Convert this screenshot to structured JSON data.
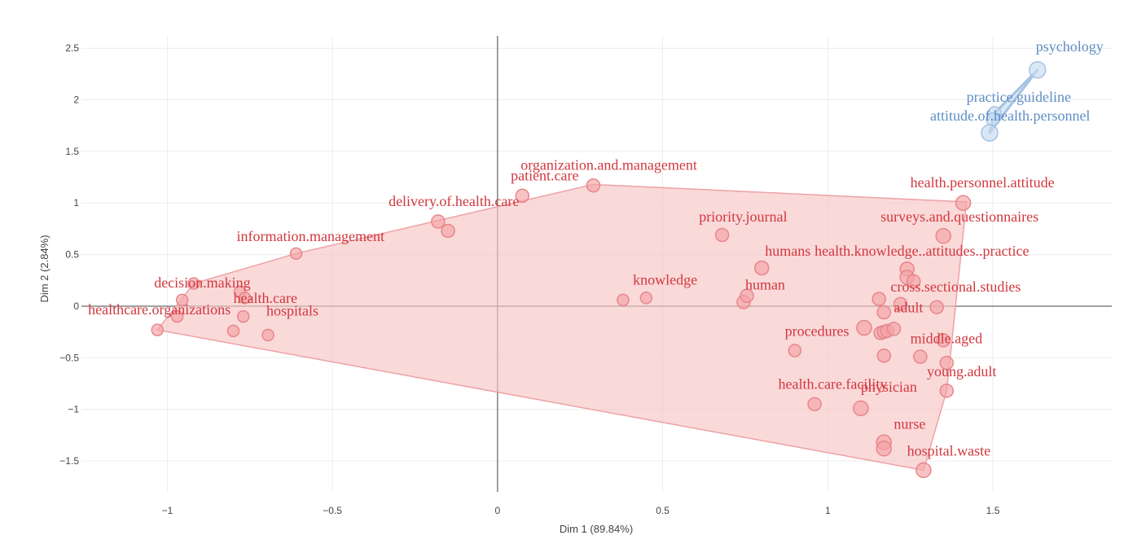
{
  "chart_data": {
    "type": "scatter",
    "xlabel": "Dim 1 (89.84%)",
    "ylabel": "Dim 2 (2.84%)",
    "xlim": [
      -1.26,
      1.86
    ],
    "ylim": [
      -1.8,
      2.62
    ],
    "grid": true,
    "x_ticks": [
      {
        "v": -1,
        "label": "−1"
      },
      {
        "v": -0.5,
        "label": "−0.5"
      },
      {
        "v": 0,
        "label": "0"
      },
      {
        "v": 0.5,
        "label": "0.5"
      },
      {
        "v": 1,
        "label": "1"
      },
      {
        "v": 1.5,
        "label": "1.5"
      }
    ],
    "y_ticks": [
      {
        "v": 2.5,
        "label": "2.5"
      },
      {
        "v": 2,
        "label": "2"
      },
      {
        "v": 1.5,
        "label": "1.5"
      },
      {
        "v": 1,
        "label": "1"
      },
      {
        "v": 0.5,
        "label": "0.5"
      },
      {
        "v": 0,
        "label": "0"
      },
      {
        "v": -0.5,
        "label": "−0.5"
      },
      {
        "v": -1,
        "label": "−1"
      },
      {
        "v": -1.5,
        "label": "−1.5"
      }
    ],
    "colors": {
      "red_fill": "#f4a3a6",
      "red_stroke": "#e8868a",
      "red_text": "#d1383e",
      "hull_fill": "#f7c4c5",
      "hull_stroke": "#eda2a5",
      "blue_fill": "#c7daf0",
      "blue_stroke": "#a4c2e4",
      "blue_text": "#5e8ec4"
    },
    "series": [
      {
        "cluster": "red",
        "points": [
          {
            "x": -1.03,
            "y": -0.23,
            "r": 7
          },
          {
            "x": -0.97,
            "y": -0.1,
            "r": 7
          },
          {
            "x": -0.955,
            "y": 0.06,
            "r": 7
          },
          {
            "x": -0.92,
            "y": 0.22,
            "r": 7
          },
          {
            "x": -0.78,
            "y": 0.14,
            "r": 7
          },
          {
            "x": -0.765,
            "y": 0.08,
            "r": 7
          },
          {
            "x": -0.77,
            "y": -0.1,
            "r": 7
          },
          {
            "x": -0.8,
            "y": -0.24,
            "r": 7
          },
          {
            "x": -0.695,
            "y": -0.28,
            "r": 7
          },
          {
            "x": -0.61,
            "y": 0.51,
            "r": 7
          },
          {
            "x": -0.18,
            "y": 0.82,
            "r": 8
          },
          {
            "x": -0.15,
            "y": 0.73,
            "r": 8
          },
          {
            "x": 0.075,
            "y": 1.07,
            "r": 8
          },
          {
            "x": 0.29,
            "y": 1.17,
            "r": 8
          },
          {
            "x": 0.38,
            "y": 0.06,
            "r": 7
          },
          {
            "x": 0.45,
            "y": 0.08,
            "r": 7
          },
          {
            "x": 0.68,
            "y": 0.69,
            "r": 8
          },
          {
            "x": 0.745,
            "y": 0.04,
            "r": 8
          },
          {
            "x": 0.755,
            "y": 0.1,
            "r": 8
          },
          {
            "x": 0.8,
            "y": 0.37,
            "r": 8.5
          },
          {
            "x": 0.9,
            "y": -0.43,
            "r": 7.5
          },
          {
            "x": 0.96,
            "y": -0.95,
            "r": 8
          },
          {
            "x": 1.1,
            "y": -0.99,
            "r": 9
          },
          {
            "x": 1.11,
            "y": -0.21,
            "r": 9
          },
          {
            "x": 1.16,
            "y": -0.26,
            "r": 8
          },
          {
            "x": 1.17,
            "y": -0.25,
            "r": 8
          },
          {
            "x": 1.18,
            "y": -0.24,
            "r": 8
          },
          {
            "x": 1.2,
            "y": -0.22,
            "r": 8
          },
          {
            "x": 1.17,
            "y": -0.06,
            "r": 8
          },
          {
            "x": 1.17,
            "y": -0.48,
            "r": 8
          },
          {
            "x": 1.155,
            "y": 0.07,
            "r": 8
          },
          {
            "x": 1.22,
            "y": 0.02,
            "r": 8
          },
          {
            "x": 1.24,
            "y": 0.36,
            "r": 8.5
          },
          {
            "x": 1.24,
            "y": 0.28,
            "r": 8.5
          },
          {
            "x": 1.26,
            "y": 0.24,
            "r": 8
          },
          {
            "x": 1.33,
            "y": -0.01,
            "r": 8
          },
          {
            "x": 1.35,
            "y": -0.33,
            "r": 8
          },
          {
            "x": 1.28,
            "y": -0.49,
            "r": 8
          },
          {
            "x": 1.36,
            "y": -0.55,
            "r": 8
          },
          {
            "x": 1.36,
            "y": -0.82,
            "r": 8
          },
          {
            "x": 1.17,
            "y": -1.32,
            "r": 9
          },
          {
            "x": 1.17,
            "y": -1.38,
            "r": 9
          },
          {
            "x": 1.29,
            "y": -1.59,
            "r": 9
          },
          {
            "x": 1.35,
            "y": 0.68,
            "r": 9
          },
          {
            "x": 1.41,
            "y": 1.0,
            "r": 9
          }
        ],
        "hull": [
          [
            -1.03,
            -0.23
          ],
          [
            -0.92,
            0.22
          ],
          [
            -0.61,
            0.51
          ],
          [
            0.29,
            1.18
          ],
          [
            1.42,
            1.01
          ],
          [
            1.36,
            -0.82
          ],
          [
            1.29,
            -1.59
          ]
        ],
        "labels": [
          {
            "text": "psychology",
            "x": 0,
            "y": 0,
            "hidden": true
          },
          {
            "text": "healthcare.organizations",
            "x": -1.24,
            "y": -0.08
          },
          {
            "text": "decision.making",
            "x": -1.04,
            "y": 0.18
          },
          {
            "text": "health.care",
            "x": -0.8,
            "y": 0.03
          },
          {
            "text": "hospitals",
            "x": -0.7,
            "y": -0.09
          },
          {
            "text": "information.management",
            "x": -0.79,
            "y": 0.63
          },
          {
            "text": "delivery.of.health.care",
            "x": -0.33,
            "y": 0.97
          },
          {
            "text": "patient.care",
            "x": 0.04,
            "y": 1.22
          },
          {
            "text": "organization.and.management",
            "x": 0.07,
            "y": 1.32
          },
          {
            "text": "knowledge",
            "x": 0.41,
            "y": 0.21
          },
          {
            "text": "priority.journal",
            "x": 0.61,
            "y": 0.82
          },
          {
            "text": "human",
            "x": 0.75,
            "y": 0.16
          },
          {
            "text": "humans",
            "x": 0.81,
            "y": 0.49
          },
          {
            "text": "health.knowledge..attitudes..practice",
            "x": 0.96,
            "y": 0.49
          },
          {
            "text": "procedures",
            "x": 0.87,
            "y": -0.29
          },
          {
            "text": "health.care.facility",
            "x": 0.85,
            "y": -0.8
          },
          {
            "text": "physician",
            "x": 1.1,
            "y": -0.83
          },
          {
            "text": "adult",
            "x": 1.2,
            "y": -0.06
          },
          {
            "text": "cross.sectional.studies",
            "x": 1.19,
            "y": 0.14
          },
          {
            "text": "middle.aged",
            "x": 1.25,
            "y": -0.36
          },
          {
            "text": "young.adult",
            "x": 1.3,
            "y": -0.68
          },
          {
            "text": "nurse",
            "x": 1.2,
            "y": -1.19
          },
          {
            "text": "hospital.waste",
            "x": 1.24,
            "y": -1.45
          },
          {
            "text": "surveys.and.questionnaires",
            "x": 1.16,
            "y": 0.82
          },
          {
            "text": "health.personnel.attitude",
            "x": 1.25,
            "y": 1.15
          }
        ]
      },
      {
        "cluster": "blue",
        "points": [
          {
            "x": 1.635,
            "y": 2.29,
            "r": 10
          },
          {
            "x": 1.505,
            "y": 1.87,
            "r": 8
          },
          {
            "x": 1.5,
            "y": 1.81,
            "r": 8
          },
          {
            "x": 1.49,
            "y": 1.68,
            "r": 10
          }
        ],
        "hull": [
          [
            1.635,
            2.29
          ],
          [
            1.505,
            1.87
          ],
          [
            1.49,
            1.68
          ]
        ],
        "labels": [
          {
            "text": "psychology",
            "x": 1.63,
            "y": 2.47
          },
          {
            "text": "practice.guideline",
            "x": 1.42,
            "y": 1.98
          },
          {
            "text": "attitude.of.health.personnel",
            "x": 1.31,
            "y": 1.8
          }
        ]
      }
    ]
  }
}
